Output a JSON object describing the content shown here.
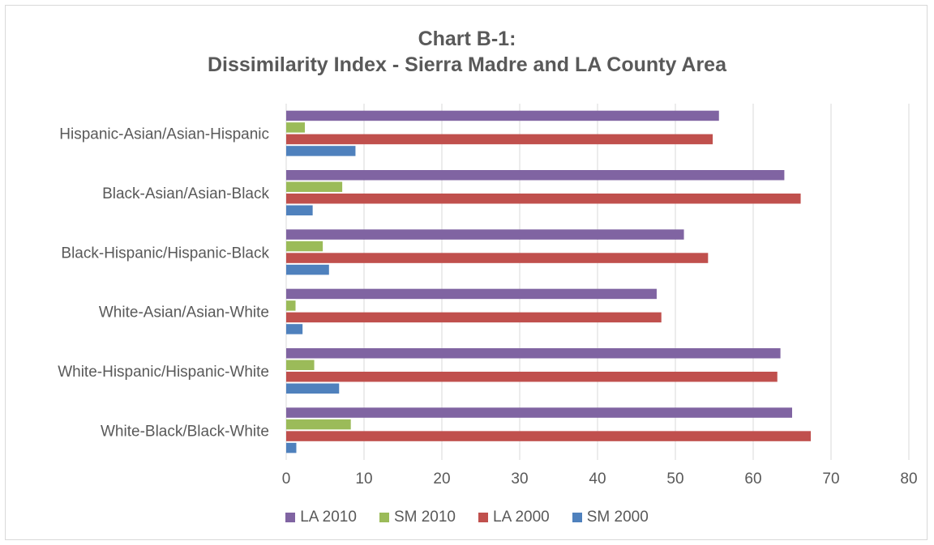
{
  "chart_data": {
    "type": "bar",
    "orientation": "horizontal",
    "title_line1": "Chart B-1:",
    "title_line2": "Dissimilarity Index - Sierra Madre and LA County Area",
    "categories": [
      "Hispanic-Asian/Asian-Hispanic",
      "Black-Asian/Asian-Black",
      "Black-Hispanic/Hispanic-Black",
      "White-Asian/Asian-White",
      "White-Hispanic/Hispanic-White",
      "White-Black/Black-White"
    ],
    "series": [
      {
        "name": "LA 2010",
        "color": "#8064a2",
        "values": [
          55.6,
          64.0,
          51.1,
          47.6,
          63.5,
          65.0
        ]
      },
      {
        "name": "SM 2010",
        "color": "#9bbb59",
        "values": [
          2.4,
          7.2,
          4.7,
          1.2,
          3.6,
          8.3
        ]
      },
      {
        "name": "LA 2000",
        "color": "#c0504d",
        "values": [
          54.8,
          66.1,
          54.2,
          48.2,
          63.1,
          67.4
        ]
      },
      {
        "name": "SM 2000",
        "color": "#4f81bd",
        "values": [
          8.9,
          3.4,
          5.5,
          2.1,
          6.8,
          1.3
        ]
      }
    ],
    "xlim": [
      0,
      80
    ],
    "xticks": [
      "0",
      "10",
      "20",
      "30",
      "40",
      "50",
      "60",
      "70",
      "80"
    ],
    "grid": true,
    "legend_position": "bottom"
  }
}
